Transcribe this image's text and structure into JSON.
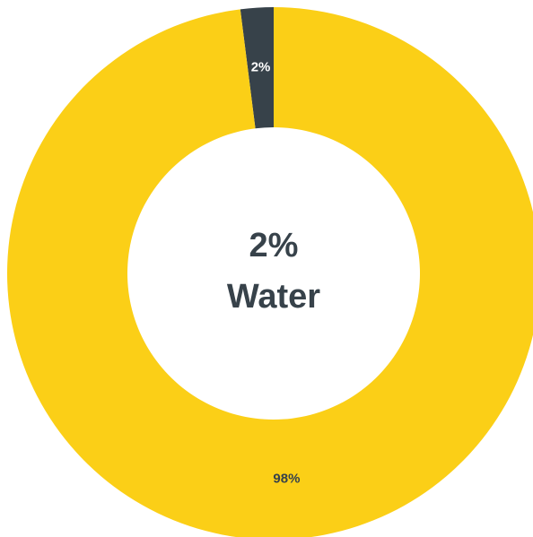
{
  "chart_data": {
    "type": "donut",
    "values": [
      98,
      2
    ],
    "value_labels": [
      "98%",
      "2%"
    ],
    "colors": [
      "#fbcf17",
      "#37424a"
    ],
    "center_text": [
      "2%",
      "Water"
    ]
  }
}
